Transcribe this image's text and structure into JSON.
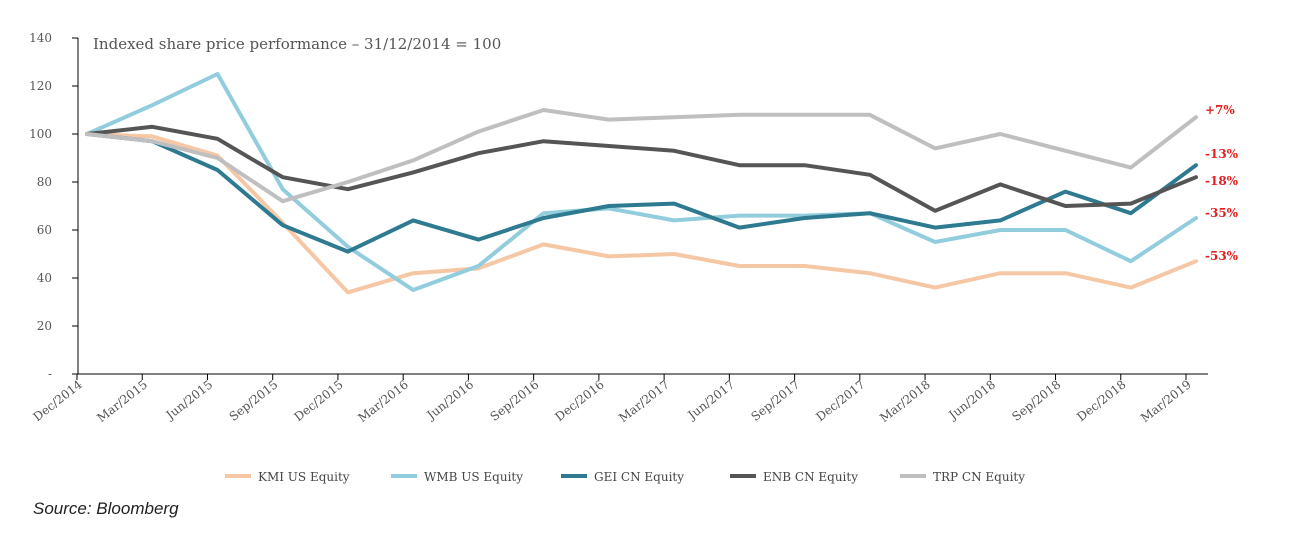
{
  "chart_data": {
    "type": "line",
    "title": "Indexed share price performance – 31/12/2014 = 100",
    "categories": [
      "Dec/2014",
      "Mar/2015",
      "Jun/2015",
      "Sep/2015",
      "Dec/2015",
      "Mar/2016",
      "Jun/2016",
      "Sep/2016",
      "Dec/2016",
      "Mar/2017",
      "Jun/2017",
      "Sep/2017",
      "Dec/2017",
      "Mar/2018",
      "Jun/2018",
      "Sep/2018",
      "Dec/2018",
      "Mar/2019"
    ],
    "y_ticks": [
      0,
      20,
      40,
      60,
      80,
      100,
      120,
      140
    ],
    "y_tick_labels": [
      "-",
      "20",
      "40",
      "60",
      "80",
      "100",
      "120",
      "140"
    ],
    "ylim": [
      0,
      140
    ],
    "series": [
      {
        "name": "KMI US Equity",
        "color": "#F5C7A5",
        "values": [
          100,
          99,
          91,
          63,
          34,
          42,
          44,
          54,
          49,
          50,
          45,
          45,
          42,
          36,
          42,
          42,
          36,
          47
        ],
        "end_label": "-53%"
      },
      {
        "name": "WMB US Equity",
        "color": "#92CDDD",
        "values": [
          100,
          112,
          125,
          77,
          53,
          35,
          45,
          67,
          69,
          64,
          66,
          66,
          67,
          55,
          60,
          60,
          47,
          65
        ],
        "end_label": "-35%"
      },
      {
        "name": "GEI CN Equity",
        "color": "#2E7A91",
        "values": [
          100,
          97,
          85,
          62,
          51,
          64,
          56,
          65,
          70,
          71,
          61,
          65,
          67,
          61,
          64,
          76,
          67,
          87
        ],
        "end_label": "-13%"
      },
      {
        "name": "ENB CN Equity",
        "color": "#555555",
        "values": [
          100,
          103,
          98,
          82,
          77,
          84,
          92,
          97,
          95,
          93,
          87,
          87,
          83,
          68,
          79,
          70,
          71,
          82
        ],
        "end_label": "-18%"
      },
      {
        "name": "TRP CN Equity",
        "color": "#BFBFBF",
        "values": [
          100,
          97,
          90,
          72,
          80,
          89,
          101,
          110,
          106,
          107,
          108,
          108,
          108,
          94,
          100,
          93,
          86,
          107
        ],
        "end_label": "+7%"
      }
    ],
    "end_label_color": "#E02020",
    "legend_position": "bottom"
  },
  "source_text": "Source: Bloomberg"
}
